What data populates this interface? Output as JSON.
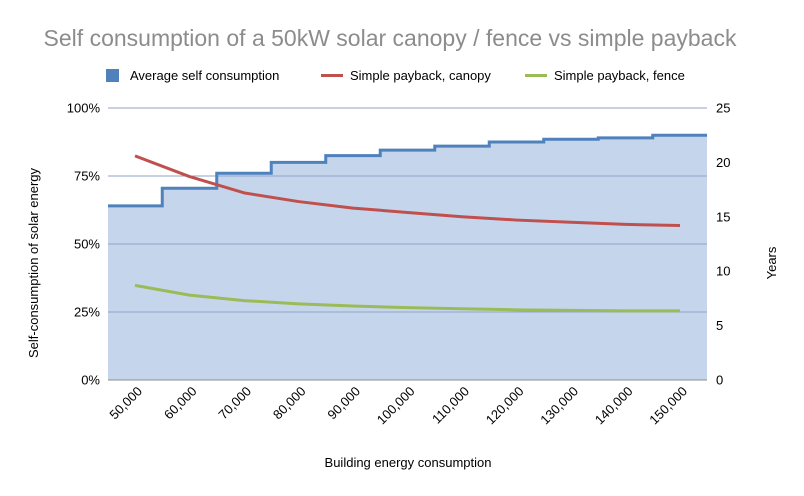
{
  "chart_data": {
    "type": "area",
    "title": "Self consumption of a 50kW solar canopy / fence vs simple payback",
    "xlabel": "Building energy consumption",
    "ylabel": "Self-consumption of solar energy",
    "y2label": "Years",
    "categories": [
      "50,000",
      "60,000",
      "70,000",
      "80,000",
      "90,000",
      "100,000",
      "110,000",
      "120,000",
      "130,000",
      "140,000",
      "150,000"
    ],
    "x": [
      50000,
      60000,
      70000,
      80000,
      90000,
      100000,
      110000,
      120000,
      130000,
      140000,
      150000
    ],
    "ylim": [
      0,
      100
    ],
    "y_ticks": [
      "0%",
      "25%",
      "50%",
      "75%",
      "100%"
    ],
    "y2lim": [
      0,
      25
    ],
    "y2_ticks": [
      "0",
      "5",
      "10",
      "15",
      "20",
      "25"
    ],
    "grid": true,
    "legend_position": "top",
    "series": [
      {
        "name": "Average self consumption",
        "type": "step-area",
        "axis": "left",
        "color": "#4f81bd",
        "fill": "#c5d6ec",
        "values": [
          64,
          70.5,
          76,
          80,
          82.5,
          84.5,
          86,
          87.5,
          88.5,
          89,
          90
        ]
      },
      {
        "name": "Simple payback, canopy",
        "type": "line",
        "axis": "right",
        "color": "#c0504d",
        "values": [
          20.6,
          18.7,
          17.2,
          16.4,
          15.8,
          15.4,
          15.0,
          14.7,
          14.5,
          14.3,
          14.2
        ]
      },
      {
        "name": "Simple payback, fence",
        "type": "line",
        "axis": "right",
        "color": "#9bbb59",
        "values": [
          8.7,
          7.8,
          7.3,
          7.0,
          6.8,
          6.65,
          6.55,
          6.45,
          6.4,
          6.35,
          6.35
        ]
      }
    ]
  }
}
